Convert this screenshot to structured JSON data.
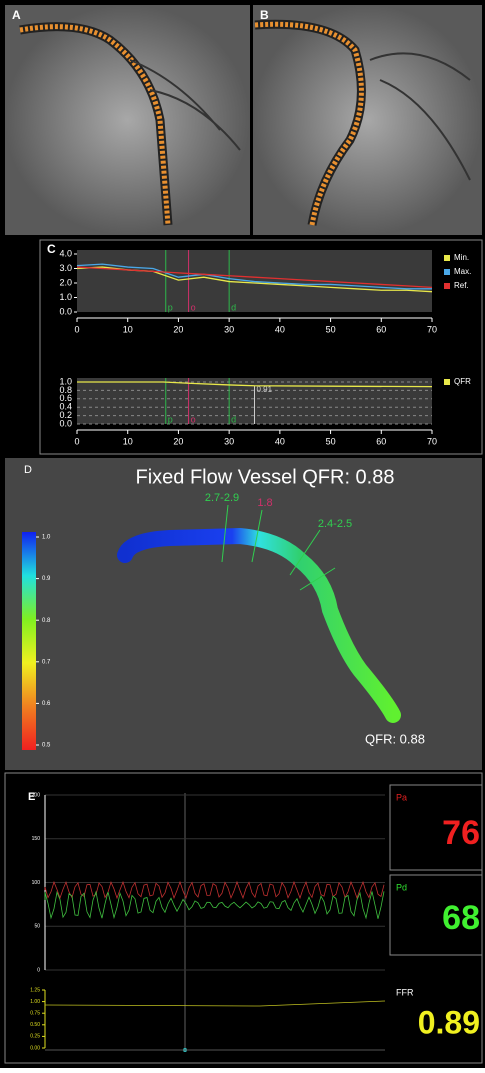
{
  "chart_data": [
    {
      "type": "line",
      "panel": "C",
      "x": [
        0,
        5,
        10,
        15,
        20,
        25,
        30,
        35,
        40,
        45,
        50,
        55,
        60,
        65,
        70
      ],
      "series": [
        {
          "name": "Min.",
          "color": "#e8e84a",
          "values": [
            3.0,
            3.1,
            2.9,
            2.8,
            2.2,
            2.4,
            2.1,
            2.0,
            1.9,
            1.8,
            1.7,
            1.6,
            1.5,
            1.5,
            1.4
          ]
        },
        {
          "name": "Max.",
          "color": "#4aa8e8",
          "values": [
            3.2,
            3.3,
            3.1,
            3.0,
            2.4,
            2.6,
            2.3,
            2.1,
            2.0,
            1.9,
            1.9,
            1.8,
            1.7,
            1.6,
            1.6
          ]
        },
        {
          "name": "Ref.",
          "color": "#e03030",
          "values": [
            3.1,
            3.0,
            2.9,
            2.8,
            2.7,
            2.6,
            2.5,
            2.4,
            2.3,
            2.2,
            2.1,
            2.0,
            1.9,
            1.8,
            1.7
          ]
        }
      ],
      "xlim": [
        0,
        70
      ],
      "xticks": [
        0,
        10,
        20,
        30,
        40,
        50,
        60,
        70
      ],
      "ylim": [
        0,
        4
      ],
      "yticks": [
        {
          "value": 0,
          "label": "0.0"
        },
        {
          "value": 1,
          "label": "1.0"
        },
        {
          "value": 2,
          "label": "2.0"
        },
        {
          "value": 3,
          "label": "3.0"
        },
        {
          "value": 4,
          "label": "4.0"
        }
      ],
      "markers": [
        {
          "label": "p",
          "x": 17.5,
          "color": "#2db84a"
        },
        {
          "label": "o",
          "x": 22,
          "color": "#d0306a"
        },
        {
          "label": "d",
          "x": 30,
          "color": "#2db84a"
        }
      ]
    },
    {
      "type": "line",
      "x": [
        0,
        17,
        22,
        30,
        35,
        50,
        70
      ],
      "series": [
        {
          "name": "QFR",
          "color": "#e8e84a",
          "values": [
            1.0,
            1.0,
            0.97,
            0.93,
            0.91,
            0.9,
            0.89
          ]
        }
      ],
      "xlim": [
        0,
        70
      ],
      "xticks": [
        0,
        10,
        20,
        30,
        40,
        50,
        60,
        70
      ],
      "ylim": [
        0,
        1
      ],
      "yticks": [
        {
          "value": 0,
          "label": "0.0"
        },
        0.2,
        0.4,
        0.6,
        0.8,
        {
          "value": 1,
          "label": "1.0"
        }
      ],
      "grid": true,
      "markers": [
        {
          "label": "p",
          "x": 17.5,
          "color": "#2db84a"
        },
        {
          "label": "o",
          "x": 22,
          "color": "#d0306a"
        },
        {
          "label": "d",
          "x": 30,
          "color": "#2db84a"
        }
      ],
      "annotation": {
        "label": "0.91",
        "x": 35,
        "value": 0.91
      }
    }
  ],
  "panels": {
    "A": {
      "label": "A"
    },
    "B": {
      "label": "B"
    },
    "C": {
      "label": "C"
    },
    "D": {
      "label": "D",
      "title": "Fixed Flow Vessel QFR: 0.88",
      "annotations": [
        "2.7-2.9",
        "1.8",
        "2.4-2.5"
      ],
      "qfr": "QFR: 0.88",
      "colorbar": {
        "ticks": [
          {
            "value": 1,
            "label": "1.0"
          },
          0.9,
          0.8,
          0.7,
          0.6,
          0.5
        ]
      }
    },
    "E": {
      "label": "E",
      "pressure_ticks": [
        200,
        150,
        100,
        50,
        0
      ],
      "ffr_ticks": [
        1.25,
        {
          "value": 1,
          "label": "1.00"
        },
        0.75,
        {
          "value": 0.5,
          "label": "0.50"
        },
        0.25,
        {
          "value": 0,
          "label": "0.00"
        }
      ],
      "pa": {
        "name": "Pa",
        "value": 76
      },
      "pd": {
        "name": "Pd",
        "value": 68
      },
      "ffr": {
        "name": "FFR",
        "value": 0.89
      }
    }
  }
}
